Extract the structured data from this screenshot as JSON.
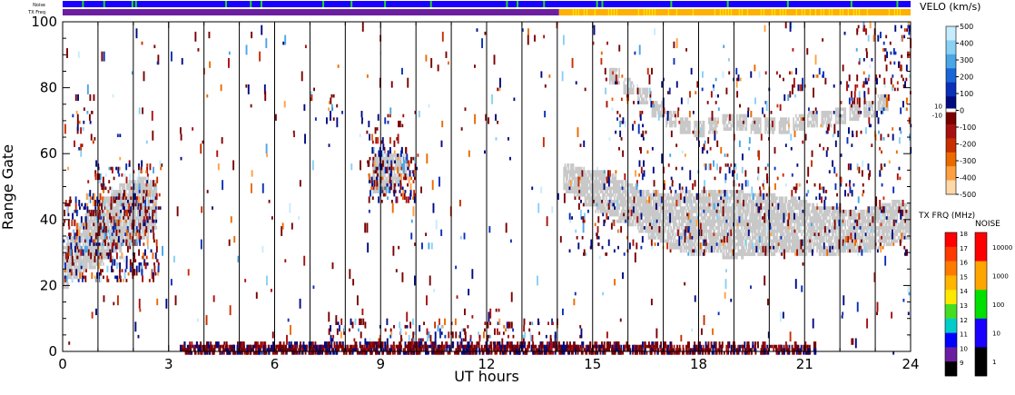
{
  "chart_data": {
    "type": "heatmap",
    "title": "",
    "xlabel": "UT hours",
    "ylabel": "Range Gate",
    "xlim": [
      0,
      24
    ],
    "ylim": [
      0,
      100
    ],
    "x_ticks": [
      0,
      3,
      6,
      9,
      12,
      15,
      18,
      21,
      24
    ],
    "x_tick_labels": [
      "0",
      "3",
      "6",
      "9",
      "12",
      "15",
      "18",
      "21",
      "24"
    ],
    "y_ticks": [
      0,
      20,
      40,
      60,
      80,
      100
    ],
    "y_tick_labels": [
      "0",
      "20",
      "40",
      "60",
      "80",
      "100"
    ],
    "hour_gridlines": true,
    "top_bars": {
      "noise_label": "Noise",
      "txfreq_label": "TX Freq",
      "noise_color": "#1a00ff",
      "noise_flag_color": "#22dd22",
      "noise_flag_hours": [
        0.55,
        1.15,
        1.95,
        2.05,
        4.6,
        5.3,
        5.6,
        7.35,
        8.15,
        9.1,
        10.4,
        12.55,
        12.85,
        13.6,
        15.1,
        15.25,
        17.2,
        18.8,
        20.5,
        22.3,
        23.6
      ],
      "txfreq_segments": [
        {
          "from": 0,
          "to": 14.05,
          "color": "#6b1fa0"
        },
        {
          "from": 14.05,
          "to": 24,
          "color": "#ffb000"
        }
      ],
      "txfreq_flicker_color": "#ffe400"
    },
    "velocity_scale": {
      "title": "VELO (km/s)",
      "tick_labels": [
        "500",
        "400",
        "300",
        "200",
        "100",
        "0",
        "-100",
        "-200",
        "-300",
        "-400",
        "-500"
      ],
      "ground_scatter_labels": [
        "10",
        "-10"
      ],
      "colors": [
        "#c6ecff",
        "#8ad0f4",
        "#4aa6e6",
        "#1a66d8",
        "#0a2fb8",
        "#000a80",
        "#7a0000",
        "#a81010",
        "#c82e00",
        "#ea6a00",
        "#ffa040",
        "#ffd8a8"
      ]
    },
    "txfreq_scale": {
      "title": "TX FRQ (MHz)",
      "tick_labels": [
        "18",
        "17",
        "16",
        "15",
        "14",
        "13",
        "12",
        "11",
        "10",
        "9"
      ],
      "colors": [
        "#ff0000",
        "#ff3a00",
        "#ff7a00",
        "#ffb400",
        "#ffe800",
        "#44dd22",
        "#00cccc",
        "#0000ff",
        "#6b1fa0",
        "#000000"
      ]
    },
    "noise_scale": {
      "title": "NOISE",
      "tick_labels": [
        "10000",
        "1000",
        "100",
        "10",
        "1"
      ],
      "colors": [
        "#ff0000",
        "#ffa500",
        "#00e000",
        "#1a00ff",
        "#000000"
      ]
    },
    "ground_scatter_color": "#c8c8c8",
    "series": [
      {
        "kind": "ground",
        "points": [
          [
            0.0,
            25,
            6
          ],
          [
            0.25,
            28,
            6
          ],
          [
            0.5,
            31,
            7
          ],
          [
            0.75,
            33,
            8
          ],
          [
            1.0,
            34,
            8
          ],
          [
            1.25,
            37,
            9
          ],
          [
            1.5,
            39,
            9
          ],
          [
            1.75,
            41,
            9
          ],
          [
            2.0,
            42,
            9
          ],
          [
            2.25,
            43,
            9
          ],
          [
            2.5,
            44,
            7
          ],
          [
            8.9,
            53,
            5
          ],
          [
            9.15,
            54,
            5
          ],
          [
            9.4,
            55,
            4
          ],
          [
            9.6,
            56,
            3
          ],
          [
            14.3,
            52,
            4
          ],
          [
            14.6,
            51,
            4
          ],
          [
            14.9,
            49,
            5
          ],
          [
            15.2,
            48,
            6
          ],
          [
            15.5,
            47,
            6
          ],
          [
            15.8,
            45,
            6
          ],
          [
            16.1,
            44,
            6
          ],
          [
            16.4,
            42,
            6
          ],
          [
            16.7,
            41,
            7
          ],
          [
            17.0,
            40,
            7
          ],
          [
            17.3,
            39,
            8
          ],
          [
            17.6,
            39,
            9
          ],
          [
            17.9,
            38,
            9
          ],
          [
            18.2,
            39,
            9
          ],
          [
            18.5,
            39,
            9
          ],
          [
            18.8,
            38,
            10
          ],
          [
            19.1,
            38,
            10
          ],
          [
            19.4,
            38,
            9
          ],
          [
            19.7,
            38,
            9
          ],
          [
            20.0,
            38,
            9
          ],
          [
            20.3,
            38,
            8
          ],
          [
            20.6,
            38,
            8
          ],
          [
            20.9,
            37,
            8
          ],
          [
            21.2,
            37,
            7
          ],
          [
            21.5,
            36,
            7
          ],
          [
            21.8,
            36,
            7
          ],
          [
            22.1,
            36,
            6
          ],
          [
            22.4,
            36,
            6
          ],
          [
            22.7,
            36,
            6
          ],
          [
            23.0,
            37,
            6
          ],
          [
            23.3,
            38,
            6
          ],
          [
            23.6,
            39,
            6
          ],
          [
            23.9,
            39,
            5
          ],
          [
            15.6,
            83,
            2
          ],
          [
            16.0,
            80,
            2
          ],
          [
            16.4,
            77,
            2
          ],
          [
            16.8,
            73,
            2
          ],
          [
            17.2,
            70,
            2
          ],
          [
            17.6,
            68,
            2
          ],
          [
            18.0,
            67,
            2
          ],
          [
            18.4,
            68,
            2
          ],
          [
            18.8,
            69,
            2
          ],
          [
            19.2,
            69,
            2
          ],
          [
            19.6,
            68,
            2
          ],
          [
            20.0,
            68,
            2
          ],
          [
            20.4,
            68,
            2
          ],
          [
            20.8,
            69,
            2
          ],
          [
            21.2,
            70,
            2
          ],
          [
            21.6,
            70,
            2
          ],
          [
            22.0,
            71,
            2
          ],
          [
            22.4,
            72,
            2
          ],
          [
            22.8,
            73,
            2
          ],
          [
            23.2,
            75,
            2
          ]
        ]
      },
      {
        "kind": "velocity",
        "regions": [
          {
            "x": [
              0.0,
              2.7
            ],
            "y": [
              22,
              48
            ],
            "n": 420
          },
          {
            "x": [
              0.9,
              2.8
            ],
            "y": [
              44,
              58
            ],
            "n": 90
          },
          {
            "x": [
              0.3,
              0.9
            ],
            "y": [
              60,
              78
            ],
            "n": 25
          },
          {
            "x": [
              8.6,
              10.0
            ],
            "y": [
              46,
              62
            ],
            "n": 160
          },
          {
            "x": [
              8.3,
              9.6
            ],
            "y": [
              60,
              73
            ],
            "n": 30
          },
          {
            "x": [
              7.0,
              7.8
            ],
            "y": [
              70,
              82
            ],
            "n": 12
          },
          {
            "x": [
              3.3,
              14.0
            ],
            "y": [
              0,
              3
            ],
            "n": 950
          },
          {
            "x": [
              14.0,
              21.3
            ],
            "y": [
              0,
              3
            ],
            "n": 520
          },
          {
            "x": [
              7.5,
              14.0
            ],
            "y": [
              2,
              10
            ],
            "n": 180
          },
          {
            "x": [
              14.3,
              23.9
            ],
            "y": [
              30,
              58
            ],
            "n": 420
          },
          {
            "x": [
              15.2,
              24.0
            ],
            "y": [
              60,
              86
            ],
            "n": 240
          },
          {
            "x": [
              22.4,
              24.0
            ],
            "y": [
              80,
              100
            ],
            "n": 70
          },
          {
            "x": [
              0.0,
              24.0
            ],
            "y": [
              0,
              100
            ],
            "n": 520
          }
        ]
      }
    ]
  }
}
